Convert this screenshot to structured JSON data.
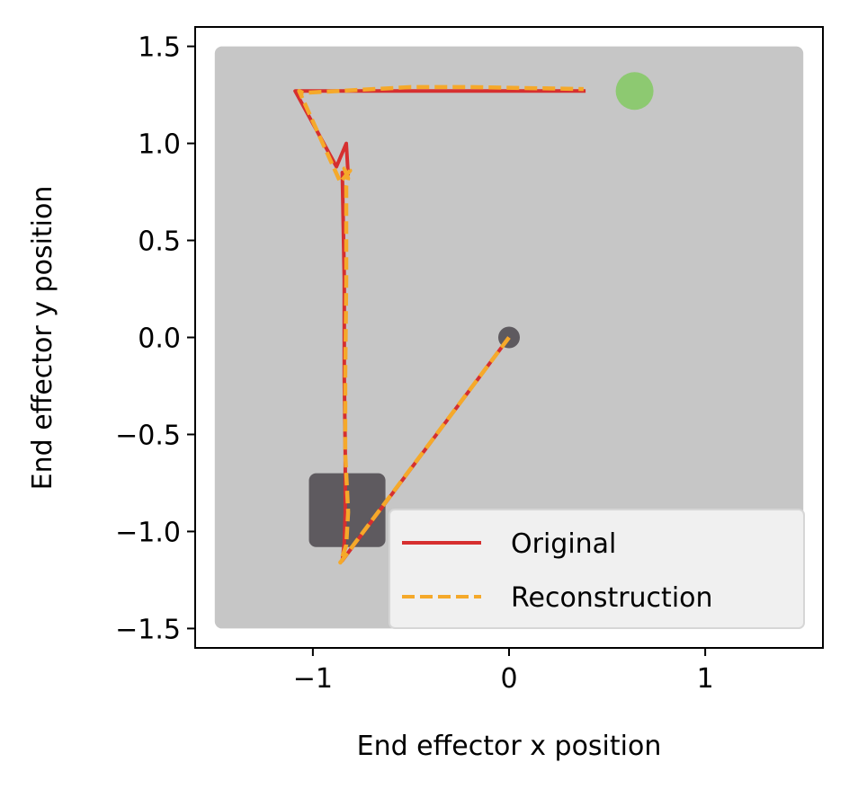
{
  "chart_data": {
    "type": "line",
    "title": "",
    "xlabel": "End effector x position",
    "ylabel": "End effector y position",
    "xlim": [
      -1.6,
      1.6
    ],
    "ylim": [
      -1.6,
      1.6
    ],
    "xticks": [
      -1,
      0,
      1
    ],
    "yticks": [
      1.5,
      1.0,
      0.5,
      0.0,
      -0.5,
      -1.0,
      -1.5
    ],
    "xtick_labels": [
      "−1",
      "0",
      "1"
    ],
    "ytick_labels": [
      "1.5",
      "1.0",
      "0.5",
      "0.0",
      "−0.5",
      "−1.0",
      "−1.5"
    ],
    "grid": false,
    "legend_position": "lower-right",
    "workspace": {
      "x": [
        -1.5,
        1.5
      ],
      "y": [
        -1.5,
        1.5
      ],
      "color": "#c6c6c6"
    },
    "start_marker": {
      "x": 0.0,
      "y": 0.0,
      "color": "#5e5a5f"
    },
    "goal_marker": {
      "x": 0.64,
      "y": 1.27,
      "color": "#8dc971"
    },
    "obstacle": {
      "x": [
        -1.02,
        -0.63
      ],
      "y": [
        -1.08,
        -0.7
      ],
      "color": "#5e5a5f"
    },
    "series": [
      {
        "name": "Original",
        "color": "#d62f2f",
        "style": "solid",
        "x": [
          0.0,
          -0.85,
          -0.84,
          -0.835,
          -0.835,
          -0.84,
          -0.84,
          -0.85,
          -0.82,
          -0.83,
          -0.88,
          -1.09,
          0.39
        ],
        "y": [
          0.0,
          -1.15,
          -1.06,
          -0.9,
          -0.6,
          -0.2,
          0.3,
          0.85,
          0.84,
          1.0,
          0.88,
          1.27,
          1.27
        ]
      },
      {
        "name": "Reconstruction",
        "color": "#f5a92a",
        "style": "dashed",
        "x": [
          0.0,
          -0.86,
          -0.83,
          -0.82,
          -0.835,
          -0.835,
          -0.83,
          -0.83,
          -0.82,
          -0.84,
          -0.81,
          -0.86,
          -1.07,
          -1.05,
          -0.5,
          -0.2,
          0.38
        ],
        "y": [
          0.0,
          -1.16,
          -1.07,
          -0.9,
          -0.6,
          -0.2,
          0.3,
          0.78,
          0.82,
          0.87,
          0.86,
          0.8,
          1.27,
          1.26,
          1.29,
          1.29,
          1.28
        ]
      }
    ]
  }
}
